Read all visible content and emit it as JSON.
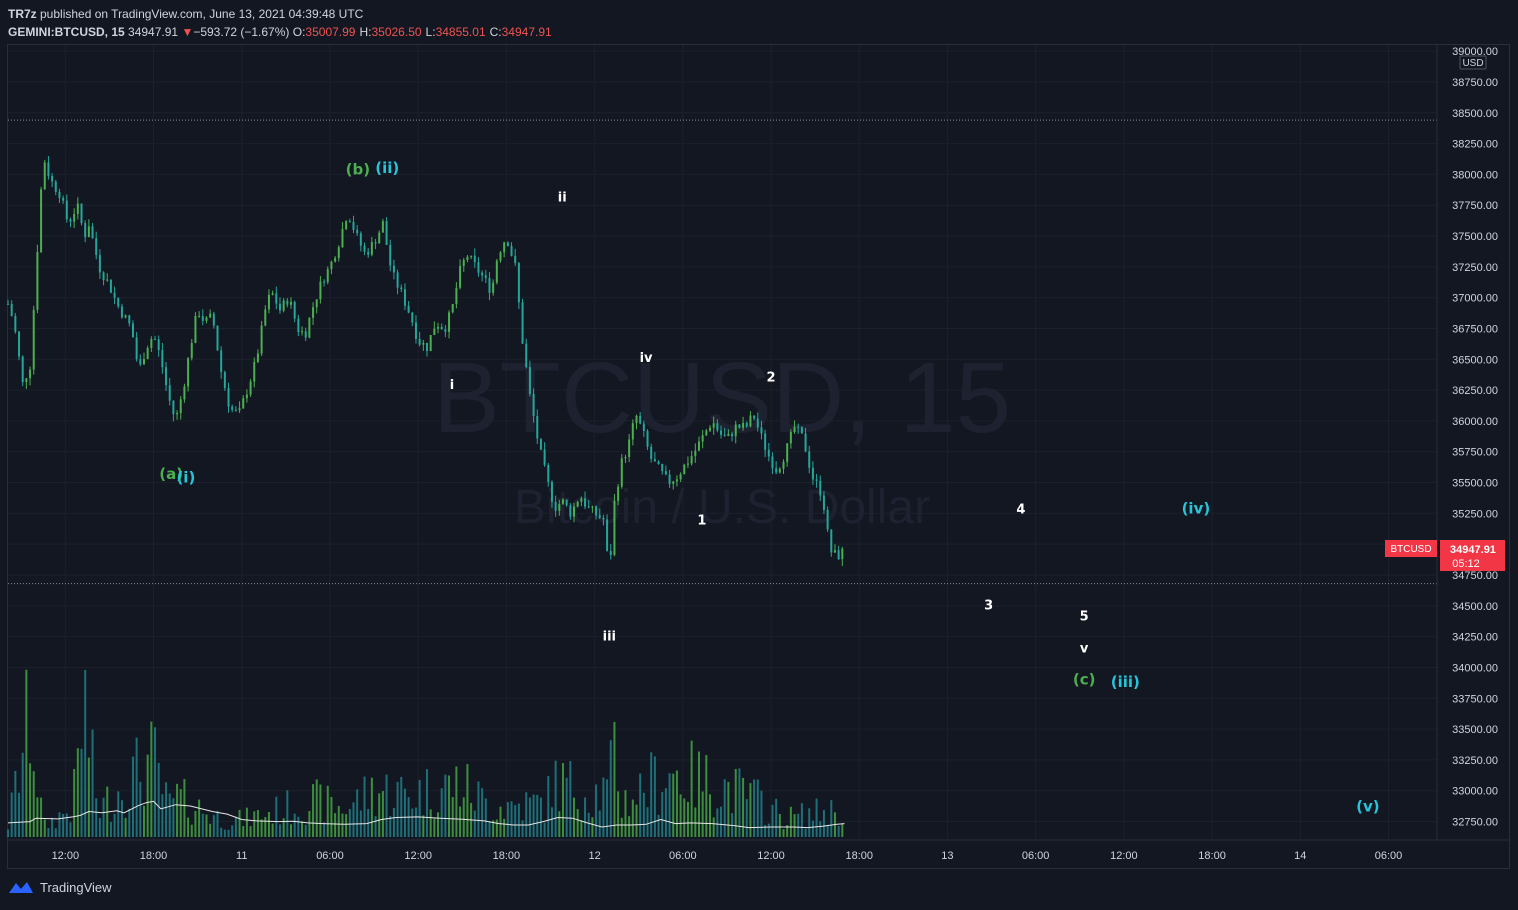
{
  "header": {
    "author": "TR7z",
    "published_text": " published on TradingView.com, June 13, 2021 04:39:48 UTC",
    "symbol": "GEMINI:BTCUSD, 15",
    "last": "34947.91",
    "change_arrow": "▼",
    "change": "−593.72 (−1.67%)",
    "open_label": "O:",
    "open": "35007.99",
    "high_label": "H:",
    "high": "35026.50",
    "low_label": "L:",
    "low": "34855.01",
    "close_label": "C:",
    "close": "34947.91"
  },
  "watermark": {
    "line1": "BTCUSD, 15",
    "line2": "Bitcoin / U.S. Dollar"
  },
  "price_tag": {
    "symbol": "BTCUSD",
    "price": "34947.91",
    "countdown": "05:12"
  },
  "footer": {
    "brand": "TradingView"
  },
  "colors": {
    "background": "#131722",
    "up": "#4caf50",
    "down": "#26a69a",
    "tag": "#f23645",
    "green_label": "#4caf50",
    "cyan_label": "#26c6da",
    "white_label": "#ffffff"
  },
  "chart_data": {
    "type": "candlestick",
    "symbol": "GEMINI:BTCUSD",
    "interval": "15",
    "currency_label": "USD",
    "y_range": [
      32600,
      39050
    ],
    "y_ticks": [
      "39000.00",
      "38750.00",
      "38500.00",
      "38250.00",
      "38000.00",
      "37750.00",
      "37500.00",
      "37250.00",
      "37000.00",
      "36750.00",
      "36500.00",
      "36250.00",
      "36000.00",
      "35750.00",
      "35500.00",
      "35250.00",
      "35000.00",
      "34750.00",
      "34500.00",
      "34250.00",
      "34000.00",
      "33750.00",
      "33500.00",
      "33250.00",
      "33000.00",
      "32750.00"
    ],
    "x_ticks": [
      {
        "label": "12:00",
        "h": 12
      },
      {
        "label": "18:00",
        "h": 18
      },
      {
        "label": "11",
        "h": 24
      },
      {
        "label": "06:00",
        "h": 30
      },
      {
        "label": "12:00",
        "h": 36
      },
      {
        "label": "18:00",
        "h": 42
      },
      {
        "label": "12",
        "h": 48
      },
      {
        "label": "06:00",
        "h": 54
      },
      {
        "label": "12:00",
        "h": 60
      },
      {
        "label": "18:00",
        "h": 66
      },
      {
        "label": "13",
        "h": 72
      },
      {
        "label": "06:00",
        "h": 78
      },
      {
        "label": "12:00",
        "h": 84
      },
      {
        "label": "18:00",
        "h": 90
      },
      {
        "label": "14",
        "h": 96
      },
      {
        "label": "06:00",
        "h": 102
      }
    ],
    "x_range_hours": [
      8.1,
      105.3
    ],
    "horizontal_lines": [
      38440,
      34680
    ],
    "price_path": [
      [
        8.1,
        36950
      ],
      [
        8.5,
        36800
      ],
      [
        9.1,
        36300
      ],
      [
        9.6,
        36450
      ],
      [
        9.9,
        37000
      ],
      [
        10.2,
        37600
      ],
      [
        10.5,
        38150
      ],
      [
        11.0,
        37950
      ],
      [
        11.6,
        37850
      ],
      [
        12.2,
        37600
      ],
      [
        12.8,
        37750
      ],
      [
        13.3,
        37500
      ],
      [
        13.6,
        37600
      ],
      [
        14.3,
        37250
      ],
      [
        15.0,
        37100
      ],
      [
        15.5,
        36950
      ],
      [
        16.0,
        36850
      ],
      [
        16.5,
        36750
      ],
      [
        17.0,
        36400
      ],
      [
        17.5,
        36600
      ],
      [
        18.0,
        36700
      ],
      [
        18.5,
        36500
      ],
      [
        19.0,
        36200
      ],
      [
        19.5,
        36000
      ],
      [
        20.0,
        36250
      ],
      [
        20.5,
        36600
      ],
      [
        21.0,
        36900
      ],
      [
        21.5,
        36800
      ],
      [
        22.0,
        36850
      ],
      [
        22.6,
        36400
      ],
      [
        23.2,
        36100
      ],
      [
        23.8,
        36050
      ],
      [
        24.5,
        36300
      ],
      [
        25.0,
        36500
      ],
      [
        25.6,
        36900
      ],
      [
        26.0,
        37050
      ],
      [
        26.6,
        36900
      ],
      [
        27.2,
        37000
      ],
      [
        27.8,
        36750
      ],
      [
        28.3,
        36700
      ],
      [
        28.9,
        36950
      ],
      [
        29.5,
        37150
      ],
      [
        30.0,
        37250
      ],
      [
        30.6,
        37450
      ],
      [
        31.2,
        37700
      ],
      [
        31.8,
        37500
      ],
      [
        32.4,
        37350
      ],
      [
        33.0,
        37450
      ],
      [
        33.6,
        37600
      ],
      [
        34.2,
        37200
      ],
      [
        34.8,
        37050
      ],
      [
        35.5,
        36850
      ],
      [
        36.0,
        36650
      ],
      [
        36.6,
        36600
      ],
      [
        37.2,
        36800
      ],
      [
        37.8,
        36750
      ],
      [
        38.3,
        36900
      ],
      [
        38.8,
        37200
      ],
      [
        39.3,
        37350
      ],
      [
        39.9,
        37250
      ],
      [
        40.5,
        37150
      ],
      [
        41.0,
        37050
      ],
      [
        41.4,
        37350
      ],
      [
        42.0,
        37500
      ],
      [
        42.6,
        37250
      ],
      [
        43.1,
        36650
      ],
      [
        43.6,
        36200
      ],
      [
        44.2,
        35800
      ],
      [
        44.8,
        35500
      ],
      [
        45.3,
        35300
      ],
      [
        45.8,
        35350
      ],
      [
        46.4,
        35250
      ],
      [
        47.0,
        35400
      ],
      [
        47.5,
        35300
      ],
      [
        48.0,
        35250
      ],
      [
        48.6,
        35200
      ],
      [
        49.0,
        34750
      ],
      [
        49.3,
        35300
      ],
      [
        49.8,
        35650
      ],
      [
        50.3,
        35800
      ],
      [
        50.8,
        36050
      ],
      [
        51.3,
        35900
      ],
      [
        51.8,
        35700
      ],
      [
        52.4,
        35600
      ],
      [
        53.0,
        35500
      ],
      [
        53.6,
        35550
      ],
      [
        54.2,
        35650
      ],
      [
        54.8,
        35750
      ],
      [
        55.5,
        35900
      ],
      [
        56.0,
        36000
      ],
      [
        56.5,
        35900
      ],
      [
        57.0,
        35850
      ],
      [
        57.6,
        35950
      ],
      [
        58.3,
        35950
      ],
      [
        58.8,
        36050
      ],
      [
        59.4,
        35850
      ],
      [
        59.9,
        35700
      ],
      [
        60.4,
        35600
      ],
      [
        61.0,
        35750
      ],
      [
        61.6,
        35950
      ],
      [
        62.2,
        35850
      ],
      [
        62.8,
        35550
      ],
      [
        63.5,
        35400
      ],
      [
        64.0,
        34950
      ],
      [
        64.5,
        34900
      ],
      [
        65.0,
        34950
      ]
    ],
    "volume_sample": [
      [
        8.1,
        120
      ],
      [
        9.6,
        1300
      ],
      [
        10.5,
        110
      ],
      [
        11.0,
        160
      ],
      [
        12.5,
        310
      ],
      [
        13.3,
        1420
      ],
      [
        14.0,
        500
      ],
      [
        14.3,
        280
      ],
      [
        15.0,
        400
      ],
      [
        17.0,
        700
      ],
      [
        18.0,
        820
      ],
      [
        19.0,
        300
      ],
      [
        19.5,
        420
      ],
      [
        22.5,
        200
      ],
      [
        24.0,
        180
      ],
      [
        28.9,
        380
      ],
      [
        31.0,
        300
      ],
      [
        33.0,
        500
      ],
      [
        35.5,
        450
      ],
      [
        38.8,
        560
      ],
      [
        41.0,
        320
      ],
      [
        44.8,
        360
      ],
      [
        45.0,
        600
      ],
      [
        47.5,
        470
      ],
      [
        49.0,
        470
      ],
      [
        49.3,
        980
      ],
      [
        49.8,
        360
      ],
      [
        53.0,
        690
      ],
      [
        56.0,
        570
      ],
      [
        58.8,
        420
      ],
      [
        61.0,
        200
      ],
      [
        64.0,
        280
      ],
      [
        65.0,
        260
      ]
    ],
    "volume_ma": [
      [
        8.1,
        45
      ],
      [
        9.6,
        55
      ],
      [
        10.0,
        80
      ],
      [
        11.5,
        75
      ],
      [
        12.5,
        90
      ],
      [
        13.0,
        100
      ],
      [
        13.6,
        130
      ],
      [
        14.5,
        120
      ],
      [
        15.5,
        135
      ],
      [
        16.0,
        120
      ],
      [
        17.0,
        175
      ],
      [
        17.5,
        195
      ],
      [
        18.0,
        205
      ],
      [
        18.5,
        150
      ],
      [
        19.5,
        180
      ],
      [
        20.5,
        170
      ],
      [
        22.0,
        130
      ],
      [
        23.0,
        110
      ],
      [
        24.0,
        70
      ],
      [
        25.0,
        60
      ],
      [
        26.5,
        55
      ],
      [
        27.5,
        58
      ],
      [
        28.5,
        45
      ],
      [
        29.5,
        40
      ],
      [
        31.0,
        35
      ],
      [
        32.5,
        40
      ],
      [
        33.5,
        70
      ],
      [
        34.5,
        85
      ],
      [
        36.0,
        90
      ],
      [
        37.5,
        80
      ],
      [
        39.0,
        72
      ],
      [
        40.5,
        60
      ],
      [
        41.5,
        40
      ],
      [
        42.5,
        30
      ],
      [
        43.5,
        30
      ],
      [
        44.5,
        55
      ],
      [
        45.5,
        85
      ],
      [
        46.5,
        80
      ],
      [
        47.5,
        45
      ],
      [
        48.5,
        15
      ],
      [
        49.5,
        30
      ],
      [
        50.5,
        30
      ],
      [
        51.5,
        35
      ],
      [
        52.5,
        70
      ],
      [
        53.5,
        40
      ],
      [
        54.5,
        45
      ],
      [
        56.0,
        40
      ],
      [
        57.5,
        25
      ],
      [
        58.5,
        10
      ],
      [
        60.0,
        15
      ],
      [
        61.5,
        15
      ],
      [
        62.5,
        10
      ],
      [
        63.5,
        20
      ],
      [
        64.5,
        35
      ],
      [
        65.0,
        40
      ]
    ],
    "wave_labels": [
      {
        "text": "(a)",
        "h": 19.2,
        "p": 35530,
        "color": "green"
      },
      {
        "text": "(i)",
        "h": 20.2,
        "p": 35500,
        "color": "cyan"
      },
      {
        "text": "(b)",
        "h": 31.9,
        "p": 38000,
        "color": "green"
      },
      {
        "text": "(ii)",
        "h": 33.9,
        "p": 38010,
        "color": "cyan"
      },
      {
        "text": "i",
        "h": 38.3,
        "p": 36260,
        "color": "white"
      },
      {
        "text": "ii",
        "h": 45.8,
        "p": 37780,
        "color": "white"
      },
      {
        "text": "iii",
        "h": 49.0,
        "p": 34220,
        "color": "white"
      },
      {
        "text": "iv",
        "h": 51.5,
        "p": 36480,
        "color": "white"
      },
      {
        "text": "1",
        "h": 55.3,
        "p": 35160,
        "color": "white"
      },
      {
        "text": "2",
        "h": 60.0,
        "p": 36320,
        "color": "white"
      },
      {
        "text": "3",
        "h": 74.8,
        "p": 34470,
        "color": "white"
      },
      {
        "text": "4",
        "h": 77.0,
        "p": 35250,
        "color": "white"
      },
      {
        "text": "5",
        "h": 81.3,
        "p": 34380,
        "color": "white"
      },
      {
        "text": "v",
        "h": 81.3,
        "p": 34120,
        "color": "white"
      },
      {
        "text": "(c)",
        "h": 81.3,
        "p": 33860,
        "color": "green"
      },
      {
        "text": "(iii)",
        "h": 84.1,
        "p": 33840,
        "color": "cyan"
      },
      {
        "text": "(iv)",
        "h": 88.9,
        "p": 35250,
        "color": "cyan"
      },
      {
        "text": "(v)",
        "h": 100.6,
        "p": 32830,
        "color": "cyan"
      }
    ]
  }
}
